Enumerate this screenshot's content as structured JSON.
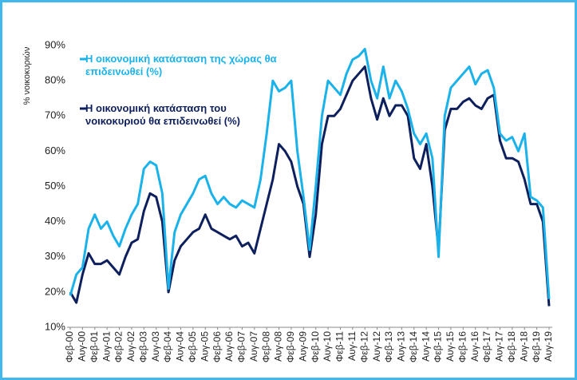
{
  "chart_data": {
    "type": "line",
    "ylabel": "% νοικοκυριών",
    "categories": [
      "Φεβ-00",
      null,
      "Αυγ-00",
      null,
      "Φεβ-01",
      null,
      "Αυγ-01",
      null,
      "Φεβ-02",
      null,
      "Αυγ-02",
      null,
      "Φεβ-03",
      null,
      "Αυγ-03",
      null,
      "Φεβ-04",
      null,
      "Αυγ-04",
      null,
      "Φεβ-05",
      null,
      "Αυγ-05",
      null,
      "Φεβ-06",
      null,
      "Αυγ-06",
      null,
      "Φεβ-07",
      null,
      "Αυγ-07",
      null,
      "Φεβ-08",
      null,
      "Αυγ-08",
      null,
      "Φεβ-09",
      null,
      "Αυγ-09",
      null,
      "Φεβ-10",
      null,
      "Αυγ-10",
      null,
      "Φεβ-11",
      null,
      "Αυγ-11",
      null,
      "Φεβ-12",
      null,
      "Αυγ-12",
      null,
      "Φεβ-13",
      null,
      "Αυγ-13",
      null,
      "Φεβ-14",
      null,
      "Αυγ-14",
      null,
      "Φεβ-15",
      null,
      "Αυγ-15",
      null,
      "Φεβ-16",
      null,
      "Αυγ-16",
      null,
      "Φεβ-17",
      null,
      "Αυγ-17",
      null,
      "Φεβ-18",
      null,
      "Αυγ-18",
      null,
      "Φεβ-19",
      null,
      "Αυγ-19"
    ],
    "series": [
      {
        "name": "Η οικονομική κατάσταση της χώρας θα επιδεινωθεί (%)",
        "color": "#1ab2ea",
        "values": [
          19,
          25,
          27,
          38,
          42,
          38,
          40,
          36,
          33,
          38,
          42,
          45,
          55,
          57,
          56,
          48,
          21,
          37,
          42,
          45,
          48,
          52,
          53,
          48,
          45,
          47,
          45,
          44,
          46,
          45,
          44,
          52,
          65,
          80,
          77,
          78,
          80,
          60,
          47,
          32,
          50,
          70,
          80,
          78,
          76,
          82,
          86,
          87,
          89,
          80,
          75,
          84,
          75,
          80,
          77,
          72,
          65,
          62,
          65,
          58,
          30,
          70,
          78,
          80,
          82,
          84,
          79,
          82,
          83,
          78,
          65,
          63,
          64,
          60,
          65,
          47,
          46,
          44,
          18
        ]
      },
      {
        "name": "Η οικονομική κατάσταση του νοικοκυριού θα επιδεινωθεί (%)",
        "color": "#0d1f5c",
        "values": [
          20,
          17,
          25,
          31,
          28,
          28,
          29,
          27,
          25,
          30,
          34,
          35,
          43,
          48,
          47,
          40,
          20,
          29,
          33,
          35,
          37,
          38,
          42,
          38,
          37,
          36,
          35,
          36,
          33,
          34,
          31,
          38,
          45,
          52,
          62,
          60,
          57,
          50,
          45,
          30,
          42,
          62,
          70,
          70,
          72,
          76,
          80,
          82,
          84,
          75,
          69,
          75,
          70,
          73,
          73,
          70,
          58,
          55,
          62,
          50,
          32,
          66,
          72,
          72,
          74,
          75,
          73,
          72,
          75,
          76,
          63,
          58,
          58,
          57,
          52,
          45,
          45,
          40,
          16
        ]
      }
    ],
    "ylim": [
      10,
      90
    ],
    "yticks": [
      {
        "value": 10,
        "label": "10%"
      },
      {
        "value": 20,
        "label": "20%"
      },
      {
        "value": 30,
        "label": "30%"
      },
      {
        "value": 40,
        "label": "40%"
      },
      {
        "value": 50,
        "label": "50%"
      },
      {
        "value": 60,
        "label": "60%"
      },
      {
        "value": 70,
        "label": "70%"
      },
      {
        "value": 80,
        "label": "80%"
      },
      {
        "value": 90,
        "label": "90%"
      }
    ],
    "grid": false
  }
}
